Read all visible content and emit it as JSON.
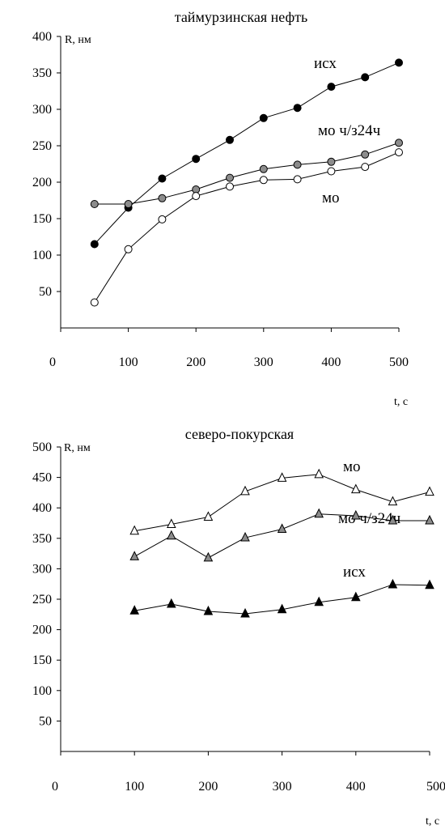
{
  "chart_data": [
    {
      "type": "line",
      "title": "таймурзинская нефть",
      "ylabel": "R, нм",
      "xlabel": "t, с",
      "ylim": [
        0,
        400
      ],
      "xlim": [
        0,
        500
      ],
      "yticks": [
        50,
        100,
        150,
        200,
        250,
        300,
        350,
        400
      ],
      "xticks": [
        0,
        100,
        200,
        300,
        400,
        500
      ],
      "grid": false,
      "x": [
        50,
        100,
        150,
        200,
        250,
        300,
        350,
        400,
        450,
        500
      ],
      "series": [
        {
          "name": "исх",
          "marker": "circle",
          "color": "#000000",
          "values": [
            115,
            165,
            205,
            232,
            258,
            288,
            302,
            331,
            344,
            364
          ]
        },
        {
          "name": "мо ч/з24ч",
          "marker": "circle",
          "color": "#8c8c8c",
          "values": [
            170,
            170,
            178,
            190,
            206,
            218,
            224,
            228,
            238,
            254
          ]
        },
        {
          "name": "мо",
          "marker": "circle",
          "color": "#ffffff",
          "values": [
            35,
            108,
            149,
            181,
            194,
            203,
            204,
            215,
            221,
            241
          ]
        }
      ]
    },
    {
      "type": "line",
      "title": "северо-покурская",
      "ylabel": "R, нм",
      "xlabel": "t, с",
      "ylim": [
        0,
        500
      ],
      "xlim": [
        0,
        500
      ],
      "yticks": [
        50,
        100,
        150,
        200,
        250,
        300,
        350,
        400,
        450,
        500
      ],
      "xticks": [
        0,
        100,
        200,
        300,
        400,
        500
      ],
      "grid": false,
      "x": [
        100,
        150,
        200,
        250,
        300,
        350,
        400,
        450,
        500
      ],
      "series": [
        {
          "name": "мо",
          "marker": "triangle",
          "color": "#ffffff",
          "values": [
            362,
            373,
            385,
            427,
            449,
            455,
            430,
            410,
            426
          ]
        },
        {
          "name": "мо ч/з24ч",
          "marker": "triangle",
          "color": "#8c8c8c",
          "values": [
            320,
            354,
            318,
            351,
            365,
            390,
            387,
            379,
            379
          ]
        },
        {
          "name": "исх",
          "marker": "triangle",
          "color": "#000000",
          "values": [
            231,
            242,
            230,
            226,
            233,
            245,
            253,
            274,
            273
          ]
        }
      ]
    }
  ]
}
